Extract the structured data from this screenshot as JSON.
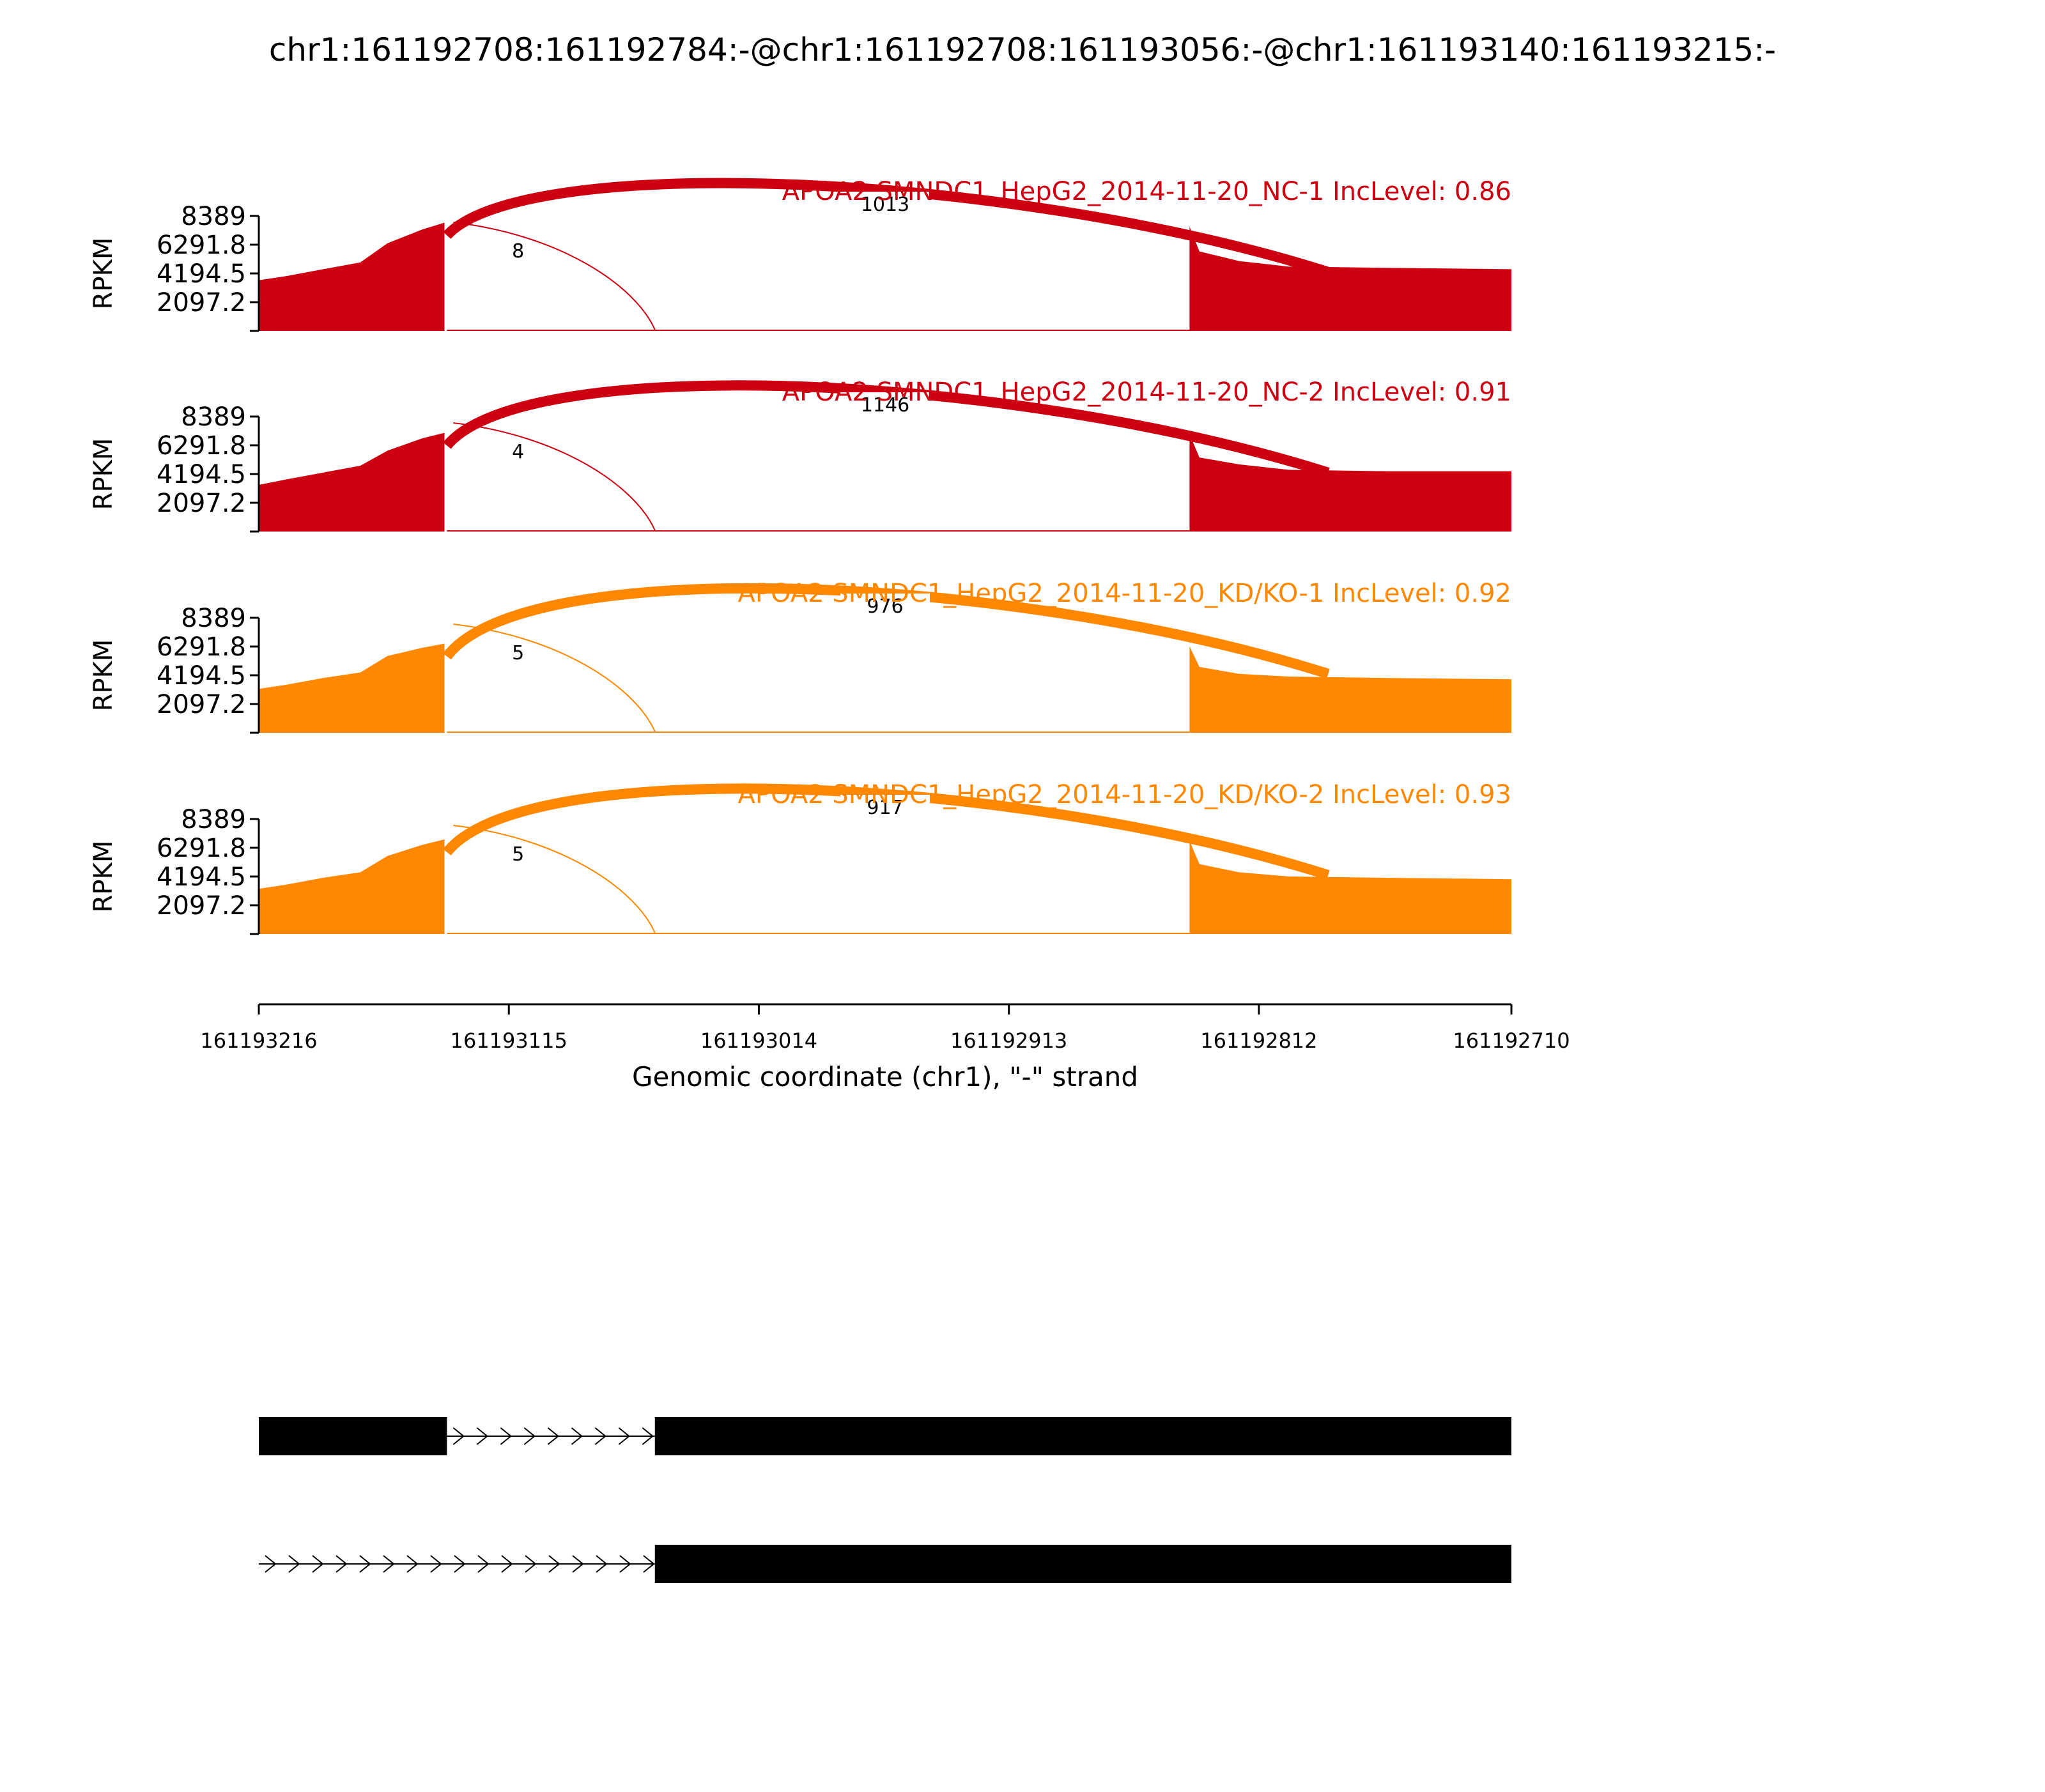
{
  "chart_data": {
    "type": "area",
    "title": "chr1:161192708:161192784:-@chr1:161192708:161193056:-@chr1:161193140:161193215:-",
    "xlabel": "Genomic coordinate (chr1), \"-\" strand",
    "ylabel": "RPKM",
    "xlim": [
      161193216,
      161192710
    ],
    "x_reversed": true,
    "ylim": [
      0,
      8389
    ],
    "x_ticks": [
      "161193216",
      "161193115",
      "161193014",
      "161192913",
      "161192812",
      "161192710"
    ],
    "y_ticks": [
      "8389",
      "6291.8",
      "4194.5",
      "2097.2"
    ],
    "grid": false,
    "colors": {
      "NC": "#cc0011",
      "KD": "#ff8800"
    },
    "coverage_regions": [
      {
        "start": 161193216,
        "end": 161193140
      },
      {
        "start": 161192840,
        "end": 161192710
      }
    ],
    "series": [
      {
        "name": "APOA2 SMNDC1_HepG2_2014-11-20_NC-1 IncLevel: 0.86",
        "color": "#cc0011",
        "coverage_exon1": [
          [
            161193216,
            3700
          ],
          [
            161193205,
            4000
          ],
          [
            161193190,
            4500
          ],
          [
            161193175,
            5000
          ],
          [
            161193164,
            6400
          ],
          [
            161193150,
            7400
          ],
          [
            161193141,
            7900
          ]
        ],
        "coverage_exon2": [
          [
            161192840,
            7600
          ],
          [
            161192836,
            5800
          ],
          [
            161192820,
            5100
          ],
          [
            161192800,
            4700
          ],
          [
            161192760,
            4600
          ],
          [
            161192710,
            4500
          ]
        ],
        "junctions": [
          {
            "from": 161193140,
            "to": 161192784,
            "count": "1013"
          },
          {
            "from": 161193140,
            "to": 161193056,
            "count": "8"
          }
        ]
      },
      {
        "name": "APOA2 SMNDC1_HepG2_2014-11-20_NC-2 IncLevel: 0.91",
        "color": "#cc0011",
        "coverage_exon1": [
          [
            161193216,
            3400
          ],
          [
            161193205,
            3800
          ],
          [
            161193190,
            4300
          ],
          [
            161193175,
            4800
          ],
          [
            161193164,
            5900
          ],
          [
            161193150,
            6800
          ],
          [
            161193141,
            7200
          ]
        ],
        "coverage_exon2": [
          [
            161192840,
            7100
          ],
          [
            161192836,
            5400
          ],
          [
            161192820,
            4900
          ],
          [
            161192800,
            4500
          ],
          [
            161192760,
            4400
          ],
          [
            161192710,
            4400
          ]
        ],
        "junctions": [
          {
            "from": 161193140,
            "to": 161192784,
            "count": "1146"
          },
          {
            "from": 161193140,
            "to": 161193056,
            "count": "4"
          }
        ]
      },
      {
        "name": "APOA2 SMNDC1_HepG2_2014-11-20_KD/KO-1 IncLevel: 0.92",
        "color": "#ff8800",
        "coverage_exon1": [
          [
            161193216,
            3200
          ],
          [
            161193205,
            3500
          ],
          [
            161193190,
            4000
          ],
          [
            161193175,
            4400
          ],
          [
            161193164,
            5600
          ],
          [
            161193150,
            6200
          ],
          [
            161193141,
            6500
          ]
        ],
        "coverage_exon2": [
          [
            161192840,
            6300
          ],
          [
            161192836,
            4800
          ],
          [
            161192820,
            4300
          ],
          [
            161192800,
            4100
          ],
          [
            161192760,
            4000
          ],
          [
            161192710,
            3900
          ]
        ],
        "junctions": [
          {
            "from": 161193140,
            "to": 161192784,
            "count": "976"
          },
          {
            "from": 161193140,
            "to": 161193056,
            "count": "5"
          }
        ]
      },
      {
        "name": "APOA2 SMNDC1_HepG2_2014-11-20_KD/KO-2 IncLevel: 0.93",
        "color": "#ff8800",
        "coverage_exon1": [
          [
            161193216,
            3300
          ],
          [
            161193205,
            3600
          ],
          [
            161193190,
            4100
          ],
          [
            161193175,
            4500
          ],
          [
            161193164,
            5700
          ],
          [
            161193150,
            6500
          ],
          [
            161193141,
            6900
          ]
        ],
        "coverage_exon2": [
          [
            161192840,
            6800
          ],
          [
            161192836,
            5100
          ],
          [
            161192820,
            4500
          ],
          [
            161192800,
            4200
          ],
          [
            161192760,
            4100
          ],
          [
            161192710,
            4000
          ]
        ],
        "junctions": [
          {
            "from": 161193140,
            "to": 161192784,
            "count": "917"
          },
          {
            "from": 161193140,
            "to": 161193056,
            "count": "5"
          }
        ]
      }
    ],
    "isoforms": [
      {
        "exons": [
          [
            161193216,
            161193140
          ],
          [
            161193056,
            161192710
          ]
        ]
      },
      {
        "exons": [
          [
            161193056,
            161192710
          ]
        ],
        "intron_from": 161193216
      }
    ]
  }
}
